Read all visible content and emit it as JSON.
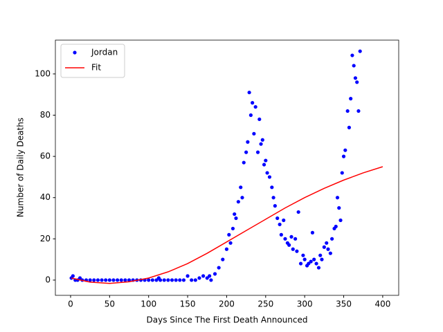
{
  "chart_data": {
    "type": "scatter",
    "xlabel": "Days Since The First Death Announced",
    "ylabel": "Number of Daily Deaths",
    "xlim": [
      -19.5,
      420.5
    ],
    "ylim": [
      -7.4,
      116.4
    ],
    "xticks": [
      0,
      50,
      100,
      150,
      200,
      250,
      300,
      350,
      400
    ],
    "yticks": [
      0,
      20,
      40,
      60,
      80,
      100
    ],
    "legend": "upper left",
    "series": [
      {
        "name": "Jordan",
        "type": "scatter",
        "color": "#0000ff",
        "x": [
          1,
          3,
          6,
          9,
          12,
          15,
          20,
          25,
          30,
          35,
          40,
          45,
          50,
          55,
          60,
          65,
          70,
          75,
          80,
          85,
          90,
          95,
          100,
          105,
          110,
          113,
          115,
          120,
          125,
          130,
          135,
          140,
          145,
          150,
          155,
          160,
          165,
          170,
          175,
          178,
          180,
          185,
          190,
          195,
          200,
          203,
          205,
          208,
          210,
          212,
          215,
          218,
          220,
          222,
          225,
          227,
          229,
          231,
          233,
          235,
          237,
          240,
          242,
          244,
          246,
          248,
          250,
          252,
          255,
          258,
          260,
          262,
          265,
          268,
          270,
          273,
          275,
          278,
          280,
          283,
          285,
          288,
          290,
          292,
          295,
          298,
          300,
          303,
          305,
          308,
          310,
          312,
          315,
          318,
          320,
          322,
          325,
          328,
          330,
          333,
          335,
          338,
          340,
          342,
          344,
          346,
          348,
          350,
          352,
          355,
          357,
          359,
          361,
          363,
          365,
          367,
          369,
          371
        ],
        "values": [
          1,
          2,
          0,
          0,
          1,
          0,
          0,
          0,
          0,
          0,
          0,
          0,
          0,
          0,
          0,
          0,
          0,
          0,
          0,
          0,
          0,
          0,
          0,
          0,
          0,
          1,
          0,
          0,
          0,
          0,
          0,
          0,
          0,
          2,
          0,
          0,
          1,
          2,
          1,
          2,
          0,
          3,
          6,
          10,
          15,
          22,
          18,
          25,
          32,
          30,
          38,
          45,
          40,
          57,
          62,
          67,
          91,
          80,
          86,
          71,
          84,
          62,
          78,
          66,
          68,
          56,
          58,
          52,
          50,
          45,
          40,
          36,
          30,
          27,
          22,
          29,
          20,
          18,
          17,
          21,
          15,
          20,
          14,
          33,
          8,
          12,
          10,
          7,
          8,
          9,
          23,
          10,
          8,
          6,
          12,
          10,
          16,
          18,
          15,
          13,
          20,
          25,
          26,
          40,
          35,
          29,
          52,
          60,
          63,
          82,
          74,
          88,
          109,
          104,
          98,
          96,
          82,
          111
        ]
      },
      {
        "name": "Fit",
        "type": "line",
        "color": "#ff0000",
        "x": [
          1,
          25,
          50,
          75,
          100,
          125,
          150,
          175,
          200,
          225,
          250,
          275,
          300,
          325,
          350,
          375,
          400
        ],
        "values": [
          1,
          -1,
          -1.6,
          -0.8,
          1,
          4,
          8,
          13,
          18.5,
          24,
          29.5,
          35,
          40,
          44.5,
          48.5,
          52,
          55
        ]
      }
    ]
  }
}
